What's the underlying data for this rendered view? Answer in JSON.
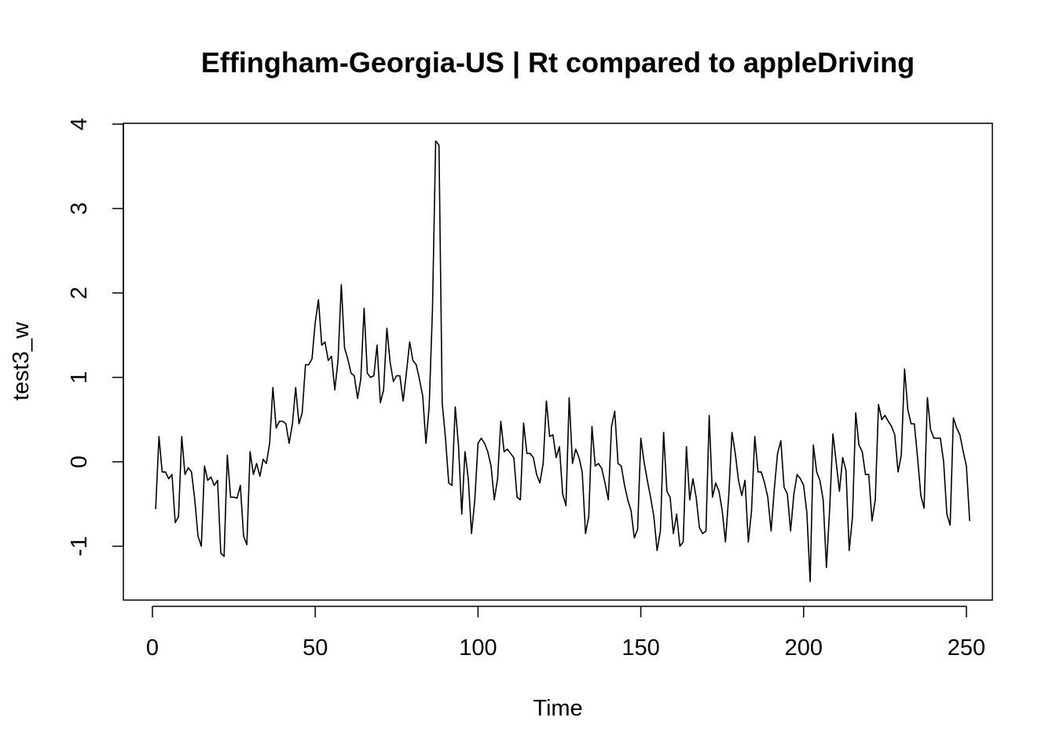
{
  "chart_data": {
    "type": "line",
    "title": "Effingham-Georgia-US | Rt compared to appleDriving",
    "xlabel": "Time",
    "ylabel": "test3_w",
    "xlim": [
      0,
      250
    ],
    "ylim": [
      -1.65,
      4
    ],
    "x_ticks": [
      0,
      50,
      100,
      150,
      200,
      250
    ],
    "y_ticks": [
      -1,
      0,
      1,
      2,
      3,
      4
    ],
    "grid": false,
    "line_color": "#000000",
    "series": [
      {
        "x_start": 1,
        "values": [
          -0.56,
          0.3,
          -0.12,
          -0.12,
          -0.2,
          -0.15,
          -0.72,
          -0.65,
          0.3,
          -0.15,
          -0.07,
          -0.12,
          -0.45,
          -0.88,
          -1.0,
          -0.05,
          -0.22,
          -0.18,
          -0.28,
          -0.22,
          -1.08,
          -1.12,
          0.08,
          -0.42,
          -0.42,
          -0.43,
          -0.28,
          -0.88,
          -0.98,
          0.12,
          -0.15,
          -0.02,
          -0.17,
          0.03,
          -0.02,
          0.22,
          0.88,
          0.4,
          0.48,
          0.48,
          0.45,
          0.22,
          0.45,
          0.88,
          0.45,
          0.58,
          1.15,
          1.15,
          1.22,
          1.65,
          1.92,
          1.38,
          1.42,
          1.2,
          1.25,
          0.85,
          1.2,
          2.1,
          1.35,
          1.22,
          1.05,
          1.02,
          0.75,
          0.98,
          1.82,
          1.05,
          1.0,
          1.02,
          1.38,
          0.7,
          0.85,
          1.58,
          1.18,
          0.95,
          1.02,
          1.02,
          0.72,
          1.05,
          1.42,
          1.2,
          1.15,
          0.98,
          0.78,
          0.22,
          0.65,
          1.8,
          3.8,
          3.75,
          0.7,
          0.28,
          -0.25,
          -0.28,
          0.65,
          0.2,
          -0.62,
          0.12,
          -0.2,
          -0.85,
          -0.45,
          0.22,
          0.28,
          0.22,
          0.12,
          -0.05,
          -0.45,
          -0.2,
          0.48,
          0.12,
          0.15,
          0.1,
          0.05,
          -0.42,
          -0.45,
          0.46,
          0.1,
          0.1,
          0.05,
          -0.15,
          -0.25,
          -0.02,
          0.72,
          0.3,
          0.32,
          0.05,
          0.18,
          -0.38,
          -0.52,
          0.76,
          -0.02,
          0.15,
          0.05,
          -0.12,
          -0.85,
          -0.65,
          0.42,
          -0.05,
          -0.02,
          -0.08,
          -0.25,
          -0.45,
          0.42,
          0.6,
          -0.02,
          -0.05,
          -0.28,
          -0.45,
          -0.58,
          -0.9,
          -0.8,
          0.28,
          0.0,
          -0.22,
          -0.42,
          -0.65,
          -1.05,
          -0.82,
          0.35,
          -0.35,
          -0.42,
          -0.85,
          -0.62,
          -1.0,
          -0.95,
          0.18,
          -0.45,
          -0.2,
          -0.42,
          -0.78,
          -0.85,
          -0.82,
          0.55,
          -0.42,
          -0.25,
          -0.35,
          -0.58,
          -0.95,
          -0.4,
          0.35,
          0.1,
          -0.22,
          -0.4,
          -0.22,
          -0.95,
          -0.58,
          0.3,
          -0.12,
          -0.12,
          -0.25,
          -0.42,
          -0.82,
          -0.32,
          0.1,
          0.25,
          -0.3,
          -0.38,
          -0.82,
          -0.38,
          -0.15,
          -0.2,
          -0.28,
          -0.6,
          -1.42,
          0.2,
          -0.12,
          -0.22,
          -0.45,
          -1.25,
          -0.55,
          0.33,
          0.0,
          -0.35,
          0.05,
          -0.1,
          -1.05,
          -0.65,
          0.58,
          0.2,
          0.12,
          -0.15,
          -0.15,
          -0.7,
          -0.45,
          0.68,
          0.5,
          0.55,
          0.48,
          0.42,
          0.32,
          -0.12,
          0.08,
          1.1,
          0.62,
          0.45,
          0.45,
          0.05,
          -0.4,
          -0.55,
          0.76,
          0.38,
          0.28,
          0.28,
          0.28,
          0.0,
          -0.62,
          -0.75,
          0.52,
          0.4,
          0.32,
          0.12,
          -0.05,
          -0.7
        ]
      }
    ]
  }
}
